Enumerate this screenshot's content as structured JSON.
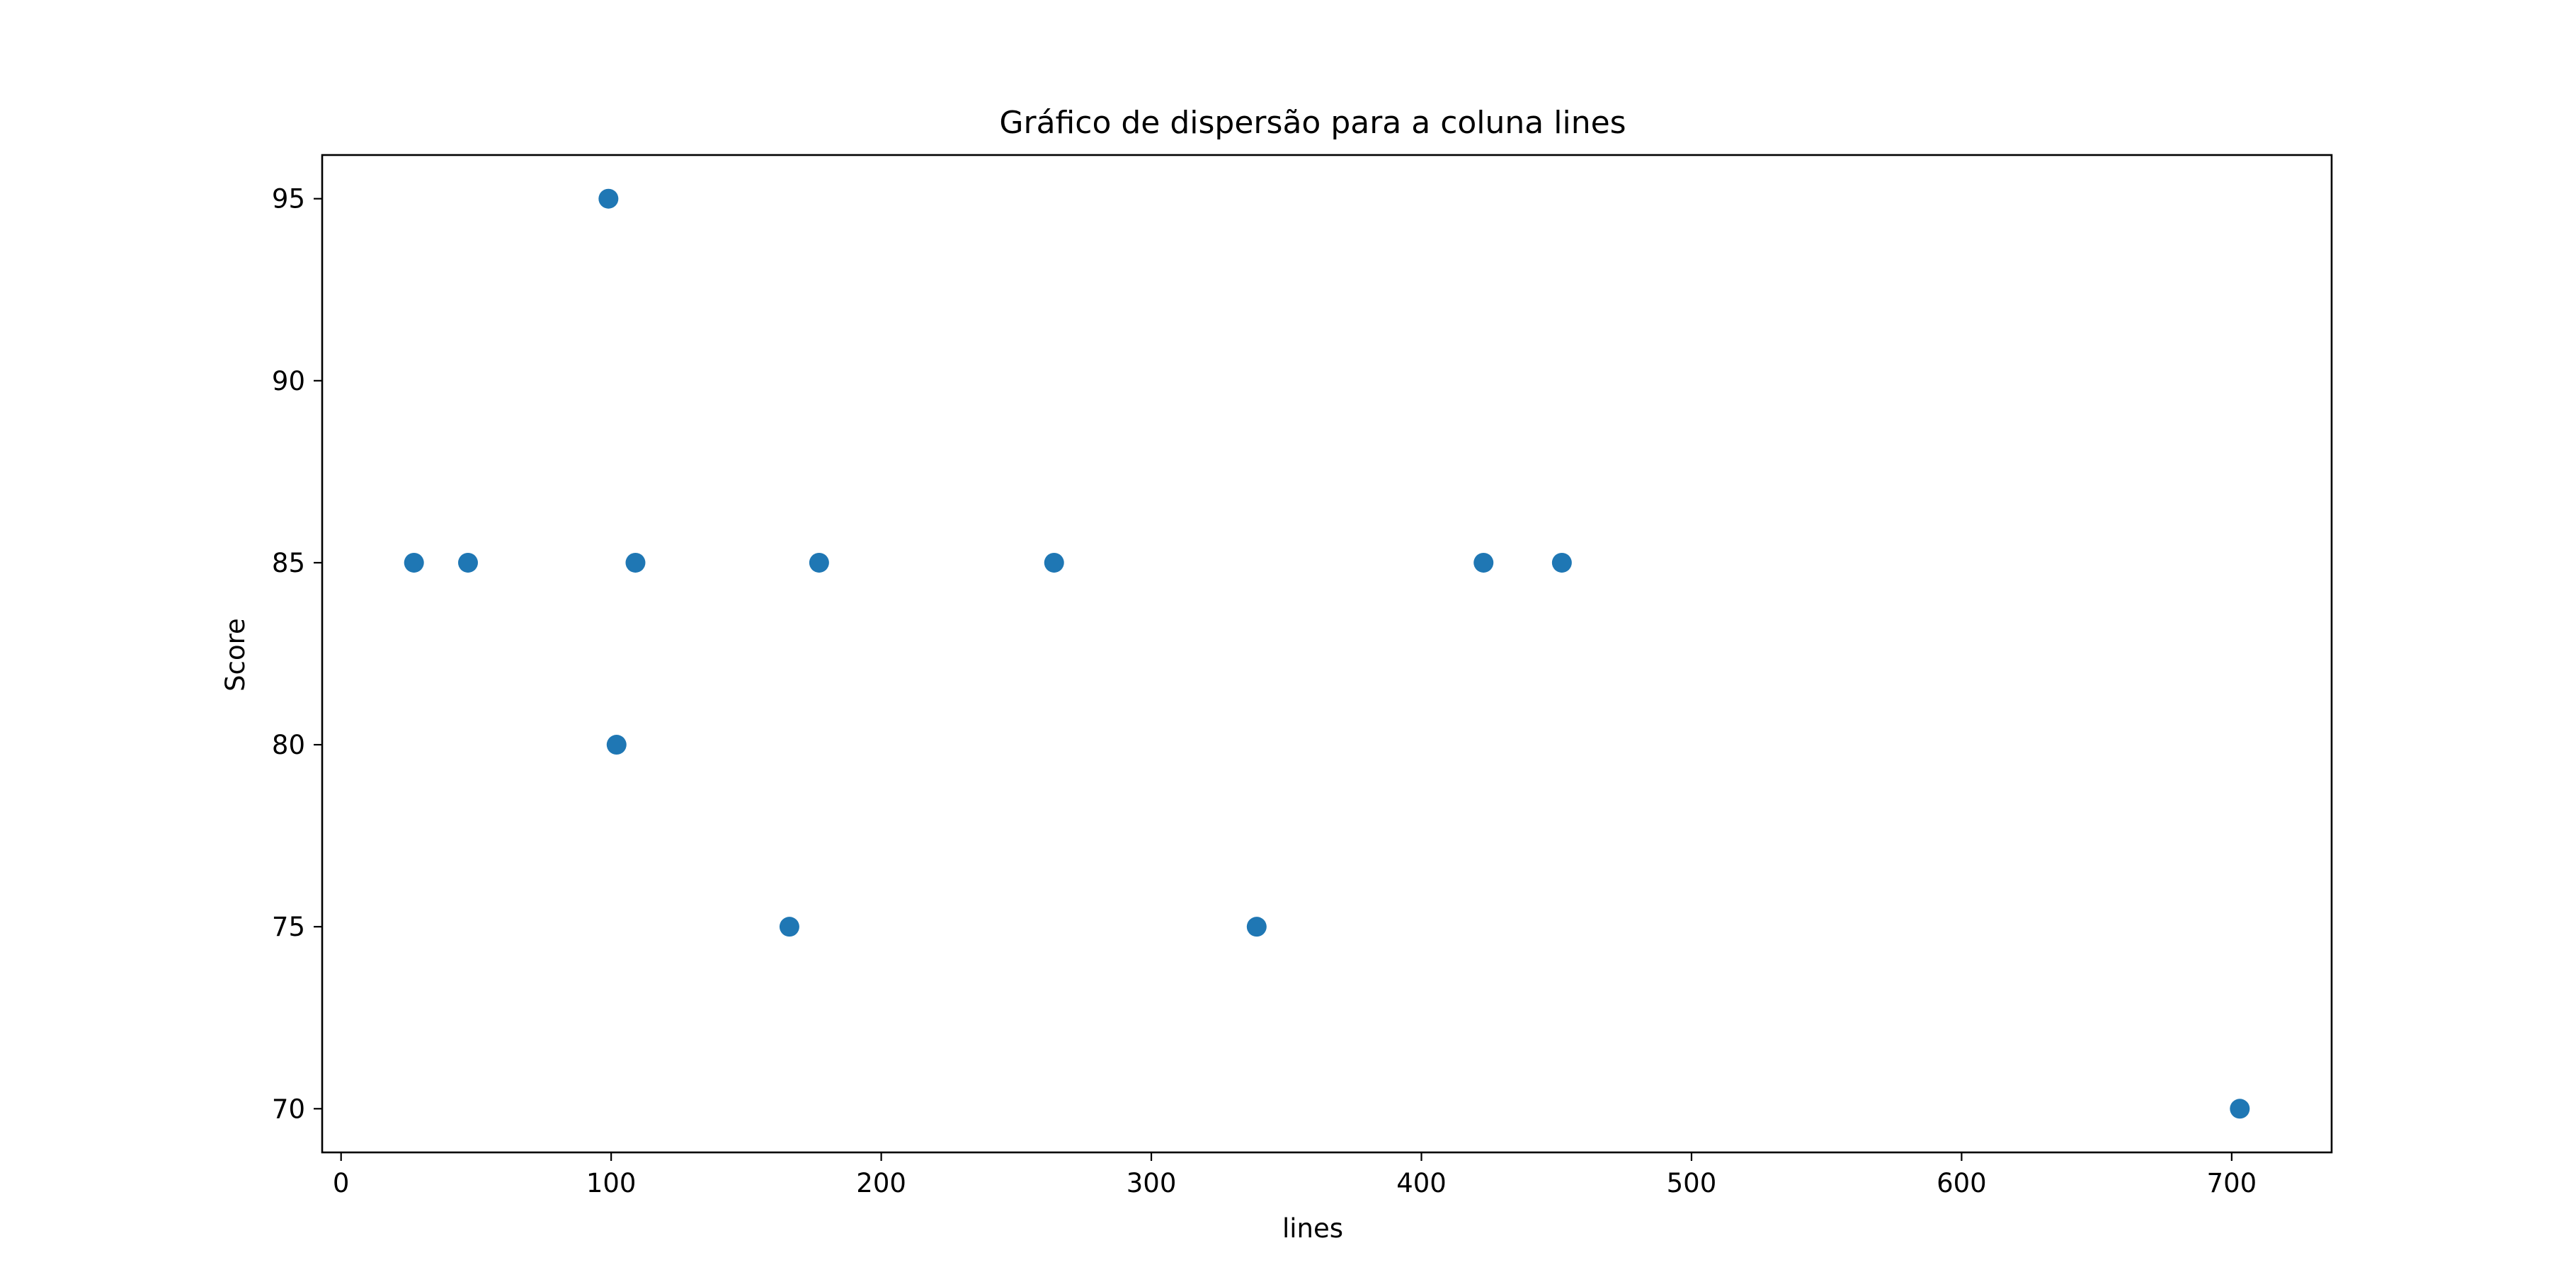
{
  "chart_data": {
    "type": "scatter",
    "title": "Gráfico de dispersão para a coluna lines",
    "xlabel": "lines",
    "ylabel": "Score",
    "xlim": [
      -7,
      737
    ],
    "ylim": [
      68.8,
      96.2
    ],
    "xticks": [
      0,
      100,
      200,
      300,
      400,
      500,
      600,
      700
    ],
    "yticks": [
      70,
      75,
      80,
      85,
      90,
      95
    ],
    "grid": false,
    "marker_color": "#1f77b4",
    "series": [
      {
        "x": [
          27,
          47,
          99,
          102,
          109,
          166,
          177,
          264,
          339,
          423,
          452,
          703
        ],
        "y": [
          85,
          85,
          95,
          80,
          85,
          75,
          85,
          85,
          75,
          85,
          85,
          70
        ]
      }
    ]
  }
}
